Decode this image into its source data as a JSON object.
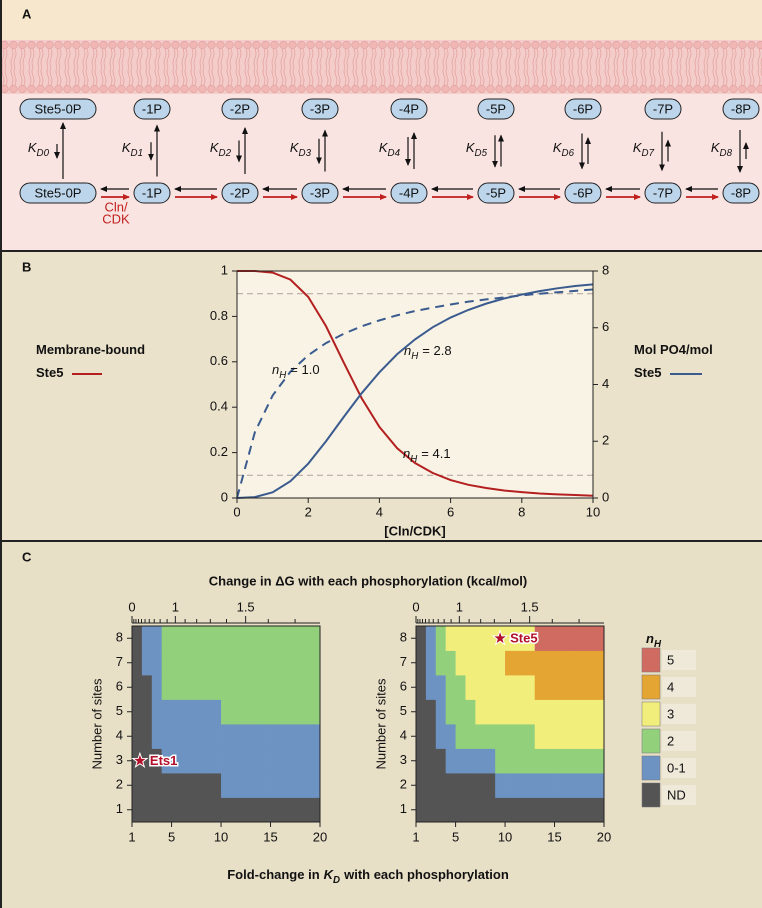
{
  "panel_labels": [
    "A",
    "B",
    "C"
  ],
  "panel_a": {
    "top_row": [
      "Ste5-0P",
      "-1P",
      "-2P",
      "-3P",
      "-4P",
      "-5P",
      "-6P",
      "-7P",
      "-8P"
    ],
    "bottom_row": [
      "Ste5-0P",
      "-1P",
      "-2P",
      "-3P",
      "-4P",
      "-5P",
      "-6P",
      "-7P",
      "-8P"
    ],
    "constants": [
      {
        "main": "K",
        "sub": "D0"
      },
      {
        "main": "K",
        "sub": "D1"
      },
      {
        "main": "K",
        "sub": "D2"
      },
      {
        "main": "K",
        "sub": "D3"
      },
      {
        "main": "K",
        "sub": "D4"
      },
      {
        "main": "K",
        "sub": "D5"
      },
      {
        "main": "K",
        "sub": "D6"
      },
      {
        "main": "K",
        "sub": "D7"
      },
      {
        "main": "K",
        "sub": "D8"
      }
    ],
    "enzyme": [
      "Cln/",
      "CDK"
    ]
  },
  "chart_data": [
    {
      "type": "line",
      "x_label": "[Cln/CDK]",
      "x": [
        0,
        0.5,
        1,
        1.5,
        2,
        2.5,
        3,
        3.5,
        4,
        4.5,
        5,
        5.5,
        6,
        6.5,
        7,
        7.5,
        8,
        8.5,
        9,
        9.5,
        10
      ],
      "xlim": [
        0,
        10
      ],
      "xticks": [
        0,
        2,
        4,
        6,
        8,
        10
      ],
      "ylim": [
        0,
        1
      ],
      "yticks": [
        0,
        0.2,
        0.4,
        0.6,
        0.8,
        1
      ],
      "y2lim": [
        0,
        8
      ],
      "y2ticks": [
        0,
        2,
        4,
        6,
        8
      ],
      "reference_lines": [
        0.1,
        0.9
      ],
      "series": [
        {
          "name": "Membrane-bound Ste5",
          "color": "#b3201f",
          "axis": "y",
          "values": [
            1,
            1.0,
            0.993,
            0.962,
            0.886,
            0.757,
            0.596,
            0.44,
            0.313,
            0.219,
            0.154,
            0.11,
            0.079,
            0.058,
            0.044,
            0.033,
            0.026,
            0.02,
            0.016,
            0.013,
            0.01
          ]
        },
        {
          "name": "Mol PO4/mol Ste5",
          "color": "#3b5b8f",
          "axis": "y2",
          "values": [
            0,
            0.03,
            0.2,
            0.59,
            1.21,
            2.0,
            2.86,
            3.69,
            4.43,
            5.07,
            5.59,
            6.02,
            6.36,
            6.63,
            6.85,
            7.03,
            7.17,
            7.29,
            7.39,
            7.47,
            7.53
          ]
        },
        {
          "color": "#3b5b8f",
          "axis": "y2",
          "dashed": true,
          "values": [
            0,
            2.31,
            3.61,
            4.45,
            5.03,
            5.46,
            5.79,
            6.05,
            6.26,
            6.44,
            6.59,
            6.71,
            6.82,
            6.92,
            7.0,
            7.07,
            7.14,
            7.2,
            7.25,
            7.3,
            7.35
          ]
        }
      ],
      "annotations": [
        {
          "main": "n",
          "sub": "H",
          "rest": "= 1.0"
        },
        {
          "main": "n",
          "sub": "H",
          "rest": "= 2.8"
        },
        {
          "main": "n",
          "sub": "H",
          "rest": "= 4.1"
        }
      ]
    },
    {
      "type": "heatmap",
      "x2_label": "Change in ΔG with each phosphorylation (kcal/mol)",
      "x_label": {
        "text": "Fold-change in",
        "main": "K",
        "sub": "D",
        "rest": "with each phosphorylation"
      },
      "y_label": "Number of sites",
      "x_edges": [
        1,
        2,
        3,
        4,
        5,
        6,
        7,
        8,
        9,
        10,
        11,
        12,
        13,
        14,
        15,
        16,
        17,
        18,
        19,
        20
      ],
      "y": [
        1,
        2,
        3,
        4,
        5,
        6,
        7,
        8
      ],
      "xlim": [
        1,
        20
      ],
      "xticks": [
        1,
        5,
        10,
        15,
        20
      ],
      "ylim": [
        0.5,
        8.5
      ],
      "yticks": [
        1,
        2,
        3,
        4,
        5,
        6,
        7,
        8
      ],
      "x2lim": [
        0,
        1.78
      ],
      "x2scale": "log",
      "x2ticks": [
        0,
        1,
        1.5
      ],
      "x2minorticks": [
        0.1,
        0.2,
        0.3,
        0.4,
        0.5,
        0.6,
        0.7,
        0.8,
        0.9,
        1.1,
        1.2,
        1.3,
        1.4,
        1.6,
        1.7
      ],
      "marker": {
        "label": "Ets1",
        "x": 1.8,
        "y": 3
      },
      "z": [
        [
          "ND",
          "ND",
          "ND",
          "ND",
          "ND",
          "ND",
          "ND",
          "ND",
          "ND",
          "ND",
          "ND",
          "ND",
          "ND",
          "ND",
          "ND",
          "ND",
          "ND",
          "ND",
          "ND"
        ],
        [
          "ND",
          "ND",
          "ND",
          "ND",
          "ND",
          "ND",
          "ND",
          "ND",
          "ND",
          "0-1",
          "0-1",
          "0-1",
          "0-1",
          "0-1",
          "0-1",
          "0-1",
          "0-1",
          "0-1",
          "0-1"
        ],
        [
          "ND",
          "ND",
          "ND",
          "0-1",
          "0-1",
          "0-1",
          "0-1",
          "0-1",
          "0-1",
          "0-1",
          "0-1",
          "0-1",
          "0-1",
          "0-1",
          "0-1",
          "0-1",
          "0-1",
          "0-1",
          "0-1"
        ],
        [
          "ND",
          "ND",
          "0-1",
          "0-1",
          "0-1",
          "0-1",
          "0-1",
          "0-1",
          "0-1",
          "0-1",
          "0-1",
          "0-1",
          "0-1",
          "0-1",
          "0-1",
          "0-1",
          "0-1",
          "0-1",
          "0-1"
        ],
        [
          "ND",
          "ND",
          "0-1",
          "0-1",
          "0-1",
          "0-1",
          "0-1",
          "0-1",
          "0-1",
          "2",
          "2",
          "2",
          "2",
          "2",
          "2",
          "2",
          "2",
          "2",
          "2"
        ],
        [
          "ND",
          "ND",
          "0-1",
          "2",
          "2",
          "2",
          "2",
          "2",
          "2",
          "2",
          "2",
          "2",
          "2",
          "2",
          "2",
          "2",
          "2",
          "2",
          "2"
        ],
        [
          "ND",
          "0-1",
          "0-1",
          "2",
          "2",
          "2",
          "2",
          "2",
          "2",
          "2",
          "2",
          "2",
          "2",
          "2",
          "2",
          "2",
          "2",
          "2",
          "2"
        ],
        [
          "ND",
          "0-1",
          "0-1",
          "2",
          "2",
          "2",
          "2",
          "2",
          "2",
          "2",
          "2",
          "2",
          "2",
          "2",
          "2",
          "2",
          "2",
          "2",
          "2"
        ]
      ]
    },
    {
      "type": "heatmap",
      "y_label": "Number of sites",
      "x_edges": [
        1,
        2,
        3,
        4,
        5,
        6,
        7,
        8,
        9,
        10,
        11,
        12,
        13,
        14,
        15,
        16,
        17,
        18,
        19,
        20
      ],
      "y": [
        1,
        2,
        3,
        4,
        5,
        6,
        7,
        8
      ],
      "xlim": [
        1,
        20
      ],
      "xticks": [
        1,
        5,
        10,
        15,
        20
      ],
      "ylim": [
        0.5,
        8.5
      ],
      "yticks": [
        1,
        2,
        3,
        4,
        5,
        6,
        7,
        8
      ],
      "x2lim": [
        0,
        1.78
      ],
      "x2scale": "log",
      "x2ticks": [
        0,
        1,
        1.5
      ],
      "x2minorticks": [
        0.1,
        0.2,
        0.3,
        0.4,
        0.5,
        0.6,
        0.7,
        0.8,
        0.9,
        1.1,
        1.2,
        1.3,
        1.4,
        1.6,
        1.7
      ],
      "marker": {
        "label": "Ste5",
        "x": 9.5,
        "y": 8
      },
      "z": [
        [
          "ND",
          "ND",
          "ND",
          "ND",
          "ND",
          "ND",
          "ND",
          "ND",
          "ND",
          "ND",
          "ND",
          "ND",
          "ND",
          "ND",
          "ND",
          "ND",
          "ND",
          "ND",
          "ND"
        ],
        [
          "ND",
          "ND",
          "ND",
          "ND",
          "ND",
          "ND",
          "ND",
          "ND",
          "0-1",
          "0-1",
          "0-1",
          "0-1",
          "0-1",
          "0-1",
          "0-1",
          "0-1",
          "0-1",
          "0-1",
          "0-1"
        ],
        [
          "ND",
          "ND",
          "ND",
          "0-1",
          "0-1",
          "0-1",
          "0-1",
          "0-1",
          "2",
          "2",
          "2",
          "2",
          "2",
          "2",
          "2",
          "2",
          "2",
          "2",
          "2"
        ],
        [
          "ND",
          "ND",
          "0-1",
          "0-1",
          "2",
          "2",
          "2",
          "2",
          "2",
          "2",
          "2",
          "2",
          "3",
          "3",
          "3",
          "3",
          "3",
          "3",
          "3"
        ],
        [
          "ND",
          "ND",
          "0-1",
          "2",
          "2",
          "2",
          "3",
          "3",
          "3",
          "3",
          "3",
          "3",
          "3",
          "3",
          "3",
          "3",
          "3",
          "3",
          "3"
        ],
        [
          "ND",
          "0-1",
          "0-1",
          "2",
          "2",
          "3",
          "3",
          "3",
          "3",
          "3",
          "3",
          "3",
          "4",
          "4",
          "4",
          "4",
          "4",
          "4",
          "4"
        ],
        [
          "ND",
          "0-1",
          "2",
          "2",
          "3",
          "3",
          "3",
          "3",
          "3",
          "4",
          "4",
          "4",
          "4",
          "4",
          "4",
          "4",
          "4",
          "4",
          "4"
        ],
        [
          "ND",
          "0-1",
          "2",
          "3",
          "3",
          "3",
          "3",
          "3",
          "3",
          "3",
          "3",
          "3",
          "5",
          "5",
          "5",
          "5",
          "5",
          "5",
          "5"
        ]
      ],
      "legend_title": {
        "main": "n",
        "sub": "H"
      },
      "legend": [
        {
          "label": "5",
          "color": "#cf6b61"
        },
        {
          "label": "4",
          "color": "#e5a532"
        },
        {
          "label": "3",
          "color": "#f2ee7c"
        },
        {
          "label": "2",
          "color": "#92d07c"
        },
        {
          "label": "0-1",
          "color": "#6d93c3"
        },
        {
          "label": "ND",
          "color": "#545454"
        }
      ]
    }
  ]
}
